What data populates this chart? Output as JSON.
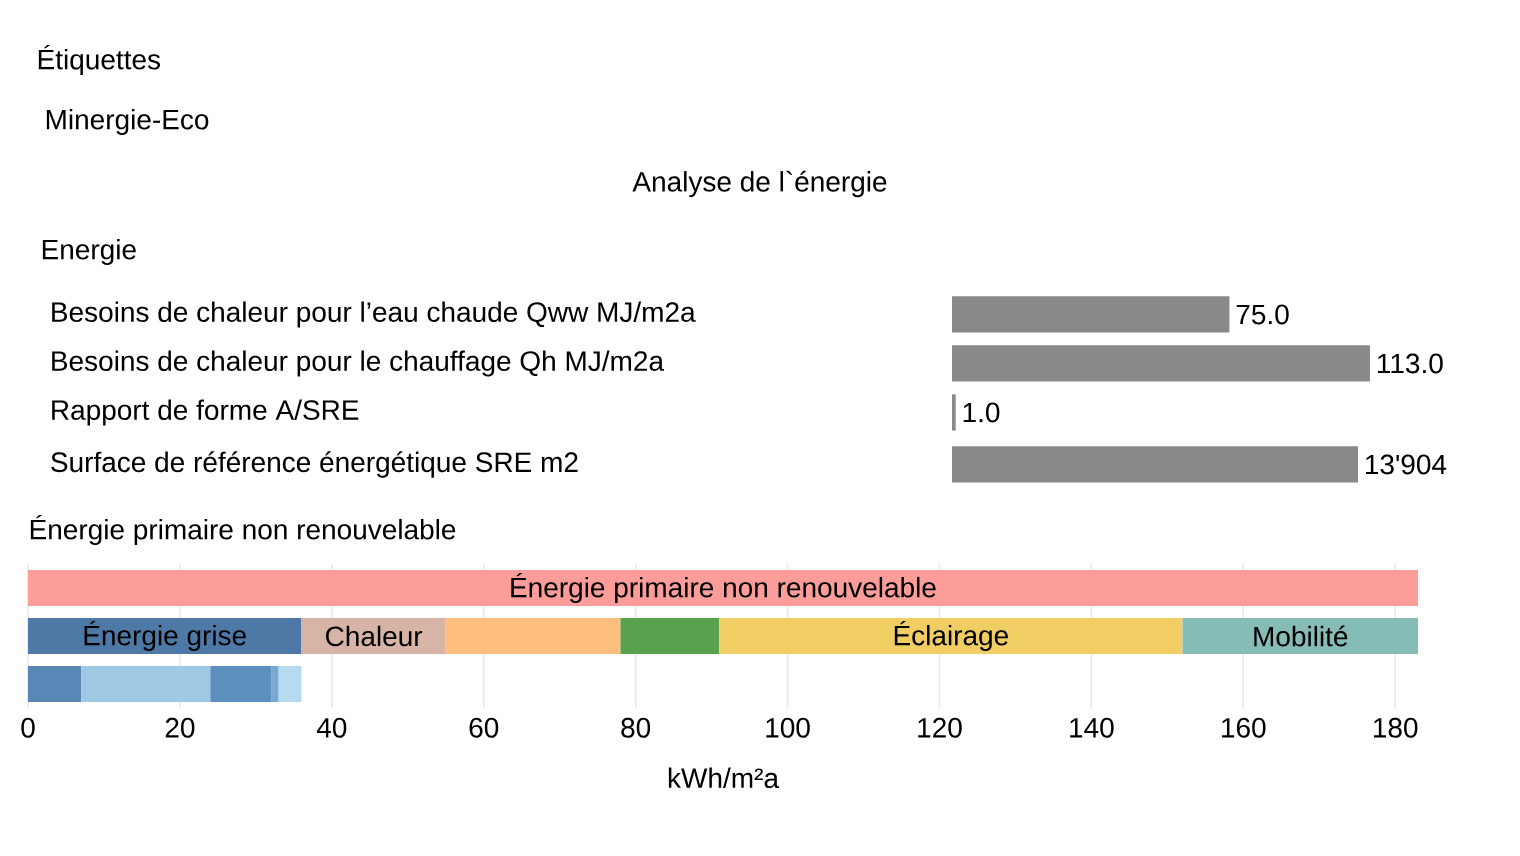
{
  "chart_data": [
    {
      "type": "other",
      "title": "Étiquettes",
      "annotations": [
        "Minergie-Eco",
        "Analyse de l`énergie"
      ]
    },
    {
      "type": "bar",
      "orientation": "horizontal",
      "title": "Energie",
      "categories": [
        "Besoins de chaleur pour l’eau chaude Qww MJ/m2a",
        "Besoins de chaleur pour le chauffage Qh MJ/m2a",
        "Rapport de forme A/SRE"
      ],
      "values": [
        75,
        113,
        1
      ],
      "value_labels": [
        "75.0",
        "113.0",
        "1.0"
      ],
      "color": "#898989",
      "tick_labels": "y"
    },
    {
      "type": "bar",
      "orientation": "horizontal",
      "categories": [
        "Surface de référence énergétique SRE m2"
      ],
      "values": [
        13904
      ],
      "value_labels": [
        "13'904"
      ],
      "color": "#898989",
      "tick_labels": "y"
    },
    {
      "type": "bar",
      "orientation": "horizontal",
      "stacked": true,
      "title": "Énergie primaire non renouvelable",
      "xlabel": "kWh/m²a",
      "categories": [
        null,
        null,
        null
      ],
      "xlim": [
        0,
        183
      ],
      "xticks": [
        0,
        20,
        40,
        60,
        80,
        100,
        120,
        140,
        160,
        180
      ],
      "grid": "x",
      "tick_labels": "x",
      "series": [
        {
          "name": "Énergie primaire non renouvelable",
          "color": "#fc9d9a",
          "values": [
            183,
            null,
            null
          ]
        },
        {
          "name": "Énergie grise",
          "color": "#4e79a7",
          "values": [
            null,
            36,
            null
          ]
        },
        {
          "name": "Chaleur",
          "color": "#d7b5a6",
          "values": [
            null,
            19,
            null
          ]
        },
        {
          "color": "#ffbe7d",
          "values": [
            null,
            23,
            null
          ]
        },
        {
          "color": "#59a14f",
          "values": [
            null,
            13,
            null
          ]
        },
        {
          "name": "Éclairage",
          "color": "#f1ce63",
          "values": [
            null,
            61,
            null
          ]
        },
        {
          "name": "Mobilité",
          "color": "#86bcb6",
          "values": [
            null,
            31,
            null
          ]
        },
        {
          "color": "#5b87b6",
          "values": [
            null,
            null,
            7
          ]
        },
        {
          "color": "#9fc8e5",
          "values": [
            null,
            null,
            17
          ]
        },
        {
          "color": "#5d8fbf",
          "values": [
            null,
            null,
            8
          ]
        },
        {
          "color": "#7aa9d4",
          "values": [
            null,
            null,
            1
          ]
        },
        {
          "color": "#b5daf2",
          "values": [
            null,
            null,
            3
          ]
        }
      ]
    }
  ]
}
